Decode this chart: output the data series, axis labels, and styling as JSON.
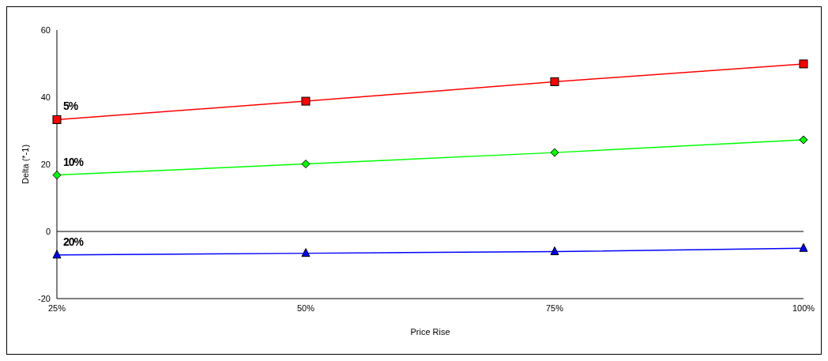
{
  "chart_data": {
    "type": "line",
    "xlabel": "Price Rise",
    "ylabel": "Delta (*-1)",
    "categories": [
      "25%",
      "50%",
      "75%",
      "100%"
    ],
    "series": [
      {
        "name": "5%",
        "color": "#ff0000",
        "marker": "square",
        "values": [
          33.3,
          38.8,
          44.6,
          49.9
        ]
      },
      {
        "name": "10%",
        "color": "#00ff00",
        "marker": "diamond",
        "values": [
          16.8,
          20.1,
          23.5,
          27.3
        ]
      },
      {
        "name": "20%",
        "color": "#0000ff",
        "marker": "triangle",
        "values": [
          -7.0,
          -6.5,
          -6.0,
          -5.0
        ]
      }
    ],
    "ylim": [
      -20,
      60
    ],
    "yticks": [
      -20,
      0,
      20,
      40,
      60
    ],
    "grid": false,
    "legend": false,
    "ref_lines": [
      {
        "axis": "y",
        "value": 0,
        "color": "#000000"
      }
    ]
  }
}
